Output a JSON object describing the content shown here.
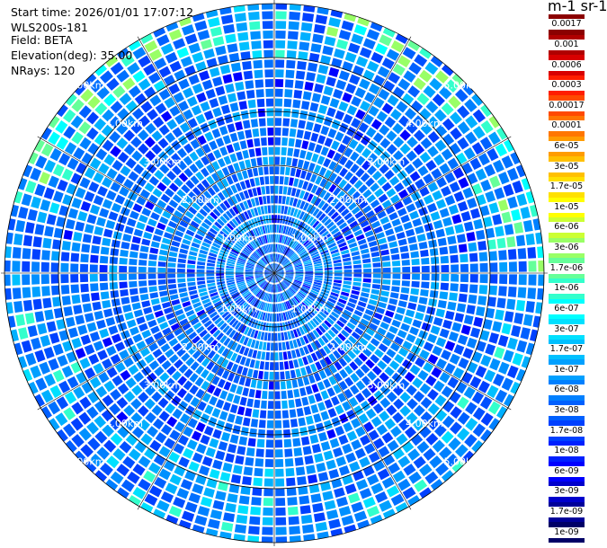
{
  "info": {
    "start_time": "Start time: 2026/01/01 17:07:12",
    "instrument": "WLS200s-181",
    "field": "Field: BETA",
    "elevation": "Elevation(deg): 35.00",
    "nrays": "NRays: 120"
  },
  "colorbar": {
    "title": "m-1 sr-1",
    "labels": [
      "0.0017",
      "0.001",
      "0.0006",
      "0.0003",
      "0.00017",
      "0.0001",
      "6e-05",
      "3e-05",
      "1.7e-05",
      "1e-05",
      "6e-06",
      "3e-06",
      "1.7e-06",
      "1e-06",
      "6e-07",
      "3e-07",
      "1.7e-07",
      "1e-07",
      "6e-08",
      "3e-08",
      "1.7e-08",
      "1e-08",
      "6e-09",
      "3e-09",
      "1.7e-09",
      "1e-09"
    ],
    "colors": [
      "#8b0000",
      "#b00000",
      "#d80000",
      "#ff1e00",
      "#ff4a00",
      "#ff7600",
      "#ff9c00",
      "#ffc000",
      "#ffe000",
      "#ffff00",
      "#ccff33",
      "#99ff66",
      "#66ff99",
      "#33ffcc",
      "#00ffff",
      "#00e0ff",
      "#00c0ff",
      "#00a0ff",
      "#0080ff",
      "#0060ff",
      "#0040ff",
      "#0020ff",
      "#0000ff",
      "#0000cc",
      "#000099",
      "#000066"
    ]
  },
  "chart_data": {
    "type": "heatmap",
    "projection": "polar-ppi",
    "field": "BETA",
    "n_rays": 120,
    "elevation_deg": 35.0,
    "range_rings_km": [
      1,
      2,
      3,
      4,
      5
    ],
    "ring_labels": [
      "1.00km",
      "2.00km",
      "3.00km",
      "4.00km",
      "5.00km"
    ],
    "max_range_km": 5.0,
    "dominant_value_range": [
      "3e-08",
      "1.7e-07"
    ]
  }
}
